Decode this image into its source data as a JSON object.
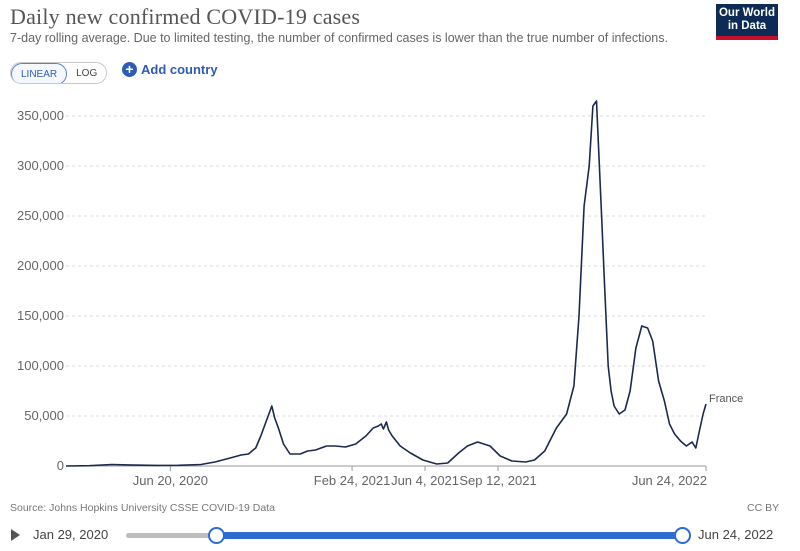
{
  "header": {
    "title": "Daily new confirmed COVID-19 cases",
    "subtitle": "7-day rolling average. Due to limited testing, the number of confirmed cases is lower than the true number of infections.",
    "logo_line1": "Our World",
    "logo_line2": "in Data"
  },
  "controls": {
    "scale_linear": "LINEAR",
    "scale_log": "LOG",
    "selected_scale": "LINEAR",
    "add_country": "Add country"
  },
  "footer": {
    "source": "Source: Johns Hopkins University CSSE COVID-19 Data",
    "license": "CC BY"
  },
  "timeline": {
    "start_label": "Jan 29, 2020",
    "end_label": "Jun 24, 2022"
  },
  "colors": {
    "line": "#1d2a4f",
    "accent": "#2e6cd1",
    "logo_bg": "#0d2b55",
    "logo_red": "#c8102e"
  },
  "chart_data": {
    "type": "line",
    "ylim": [
      0,
      350000
    ],
    "yticks": [
      0,
      50000,
      100000,
      150000,
      200000,
      250000,
      300000,
      350000
    ],
    "ytick_labels": [
      "0",
      "50,000",
      "100,000",
      "150,000",
      "200,000",
      "250,000",
      "300,000",
      "350,000"
    ],
    "xtick_labels": [
      "Jun 20, 2020",
      "Feb 24, 2021",
      "Jun 4, 2021",
      "Sep 12, 2021",
      "Jun 24, 2022"
    ],
    "xticks": [
      "2020-06-20",
      "2021-02-24",
      "2021-06-04",
      "2021-09-12",
      "2022-06-24"
    ],
    "xlim": [
      "2020-01-29",
      "2022-06-24"
    ],
    "grid": "horizontal dashed",
    "series": [
      {
        "name": "France",
        "x": [
          "2020-01-29",
          "2020-03-01",
          "2020-04-01",
          "2020-05-01",
          "2020-06-01",
          "2020-07-01",
          "2020-08-01",
          "2020-08-20",
          "2020-09-10",
          "2020-09-25",
          "2020-10-05",
          "2020-10-15",
          "2020-10-22",
          "2020-10-28",
          "2020-11-02",
          "2020-11-06",
          "2020-11-10",
          "2020-11-15",
          "2020-11-22",
          "2020-12-01",
          "2020-12-15",
          "2020-12-25",
          "2021-01-05",
          "2021-01-20",
          "2021-02-01",
          "2021-02-15",
          "2021-03-01",
          "2021-03-15",
          "2021-03-25",
          "2021-04-01",
          "2021-04-05",
          "2021-04-08",
          "2021-04-12",
          "2021-04-15",
          "2021-04-20",
          "2021-05-01",
          "2021-05-15",
          "2021-06-01",
          "2021-06-20",
          "2021-07-05",
          "2021-07-20",
          "2021-08-01",
          "2021-08-15",
          "2021-09-01",
          "2021-09-15",
          "2021-10-01",
          "2021-10-20",
          "2021-11-01",
          "2021-11-15",
          "2021-12-01",
          "2021-12-15",
          "2021-12-25",
          "2022-01-01",
          "2022-01-08",
          "2022-01-15",
          "2022-01-20",
          "2022-01-25",
          "2022-02-01",
          "2022-02-05",
          "2022-02-10",
          "2022-02-14",
          "2022-02-18",
          "2022-02-25",
          "2022-03-05",
          "2022-03-12",
          "2022-03-20",
          "2022-03-28",
          "2022-04-05",
          "2022-04-12",
          "2022-04-20",
          "2022-04-28",
          "2022-05-05",
          "2022-05-12",
          "2022-05-20",
          "2022-05-28",
          "2022-06-05",
          "2022-06-10",
          "2022-06-15",
          "2022-06-20",
          "2022-06-24"
        ],
        "y": [
          0,
          300,
          1500,
          900,
          600,
          700,
          1500,
          4000,
          8000,
          11000,
          12000,
          18000,
          30000,
          42000,
          52000,
          60000,
          48000,
          38000,
          22000,
          12000,
          12000,
          15000,
          16000,
          20000,
          20000,
          19000,
          22000,
          30000,
          38000,
          40000,
          42000,
          37000,
          44000,
          36000,
          30000,
          20000,
          13000,
          6000,
          2000,
          3000,
          13000,
          20000,
          24000,
          20000,
          10000,
          5000,
          4000,
          6000,
          15000,
          38000,
          52000,
          80000,
          150000,
          260000,
          300000,
          360000,
          365000,
          250000,
          180000,
          100000,
          75000,
          60000,
          52000,
          56000,
          75000,
          118000,
          140000,
          138000,
          125000,
          85000,
          65000,
          42000,
          32000,
          25000,
          20000,
          24000,
          18000,
          35000,
          52000,
          62000
        ]
      }
    ],
    "series_label": "France"
  }
}
